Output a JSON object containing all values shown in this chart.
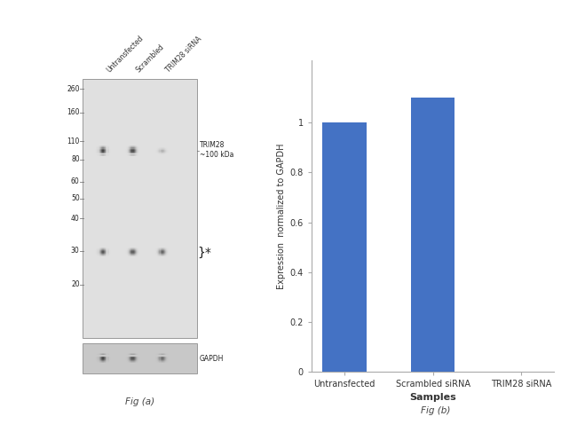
{
  "fig_title_a": "Fig (a)",
  "fig_title_b": "Fig (b)",
  "bar_categories": [
    "Untransfected",
    "Scrambled siRNA",
    "TRIM28 siRNA"
  ],
  "bar_values": [
    1.0,
    1.1,
    0.0
  ],
  "bar_color": "#4472C4",
  "ylabel": "Expression  normalized to GAPDH",
  "xlabel": "Samples",
  "ylim": [
    0,
    1.25
  ],
  "yticks": [
    0,
    0.2,
    0.4,
    0.6,
    0.8,
    1.0
  ],
  "background_color": "#ffffff",
  "bar_width": 0.5,
  "wb_labels_top": [
    "Untransfected",
    "Scrambled",
    "TRIM28 siRNA"
  ],
  "wb_mw_labels": [
    "260",
    "160",
    "110",
    "80",
    "60",
    "50",
    "40",
    "30",
    "20"
  ],
  "wb_annotation_trim28": "TRIM28\n~100 kDa",
  "wb_annotation_gapdh": "GAPDH",
  "wb_annotation_star": "}*"
}
